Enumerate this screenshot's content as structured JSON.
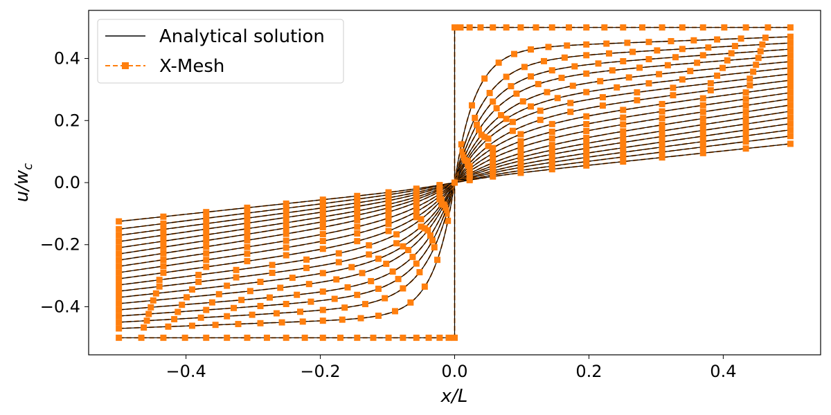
{
  "chart_data": {
    "type": "line",
    "xlabel": "x/L",
    "ylabel_base": "u/w",
    "ylabel_sub": "c",
    "xlim": [
      -0.545,
      0.545
    ],
    "ylim": [
      -0.555,
      0.555
    ],
    "xticks": [
      -0.4,
      -0.2,
      0.0,
      0.2,
      0.4
    ],
    "xtick_labels": [
      "−0.4",
      "−0.2",
      "0.0",
      "0.2",
      "0.4"
    ],
    "yticks": [
      -0.4,
      -0.2,
      0.0,
      0.2,
      0.4
    ],
    "ytick_labels": [
      "−0.4",
      "−0.2",
      "0.0",
      "0.2",
      "0.4"
    ],
    "grid": false,
    "legend_position": "top-left",
    "series": [
      {
        "name": "Analytical solution",
        "color": "#000000",
        "style": "solid"
      },
      {
        "name": "X-Mesh",
        "color": "#ff7f0e",
        "style": "dashed",
        "marker": "square"
      }
    ],
    "family": {
      "count": 19,
      "edge_value": [
        0.5,
        0.47,
        0.45,
        0.43,
        0.41,
        0.39,
        0.37,
        0.35,
        0.33,
        0.31,
        0.29,
        0.27,
        0.25,
        0.23,
        0.21,
        0.19,
        0.17,
        0.15,
        0.125
      ],
      "near_value": [
        0.5,
        0.43,
        0.39,
        0.355,
        0.325,
        0.29,
        0.255,
        0.225,
        0.195,
        0.165,
        0.135,
        0.11,
        0.085,
        0.065,
        0.05,
        0.035,
        0.025,
        0.015,
        0.01
      ],
      "transition_width": [
        0.0,
        0.03,
        0.04,
        0.045,
        0.05,
        0.055,
        0.055,
        0.055,
        0.06,
        0.06,
        0.06,
        0.06,
        0.06,
        0.055,
        0.05,
        0.045,
        0.04,
        0.035,
        0.03
      ],
      "marker_count": [
        21,
        19,
        17,
        16,
        15,
        14,
        13,
        12,
        12,
        11,
        11,
        11,
        11,
        11,
        11,
        11,
        11,
        11,
        11
      ]
    }
  }
}
